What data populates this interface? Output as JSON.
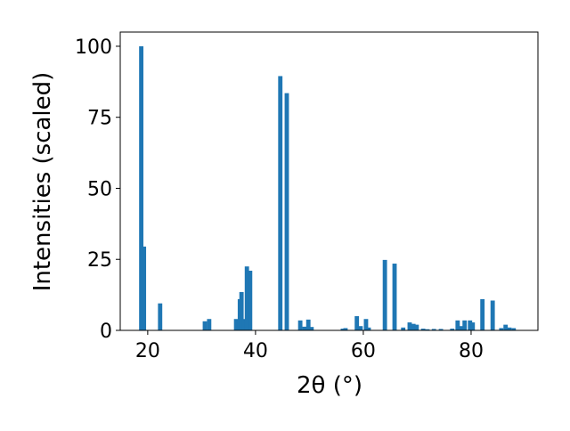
{
  "chart_data": {
    "type": "bar",
    "xlabel": "2θ (°)",
    "ylabel": "Intensities (scaled)",
    "x": [
      18.8,
      19.3,
      22.3,
      30.6,
      31.4,
      36.4,
      37.1,
      37.4,
      37.9,
      38.4,
      39.0,
      44.6,
      45.8,
      48.3,
      49.1,
      49.8,
      50.4,
      56.2,
      56.7,
      58.8,
      59.5,
      60.5,
      61.0,
      64.0,
      65.8,
      67.4,
      68.6,
      69.3,
      69.9,
      71.1,
      71.9,
      73.1,
      74.4,
      76.5,
      77.5,
      78.2,
      78.8,
      79.8,
      80.3,
      82.1,
      84.0,
      85.6,
      86.4,
      87.1,
      87.9
    ],
    "values": [
      100,
      29.5,
      9.5,
      3.2,
      4,
      4,
      11,
      13.5,
      4,
      22.5,
      21,
      89.5,
      83.5,
      3.5,
      1.3,
      3.8,
      1.2,
      0.6,
      0.8,
      5,
      1.5,
      4,
      1,
      24.8,
      23.5,
      1,
      2.8,
      2.3,
      2,
      0.6,
      0.4,
      0.5,
      0.5,
      0.6,
      3.5,
      1.5,
      3.5,
      3.5,
      2.8,
      11,
      10.5,
      0.8,
      2,
      1,
      0.8
    ],
    "color": "#1f77b4",
    "xlim": [
      14.9,
      92.4
    ],
    "ylim": [
      0,
      105
    ],
    "xticks": [
      20,
      40,
      60,
      80
    ],
    "yticks": [
      0,
      25,
      50,
      75,
      100
    ],
    "grid": false
  }
}
